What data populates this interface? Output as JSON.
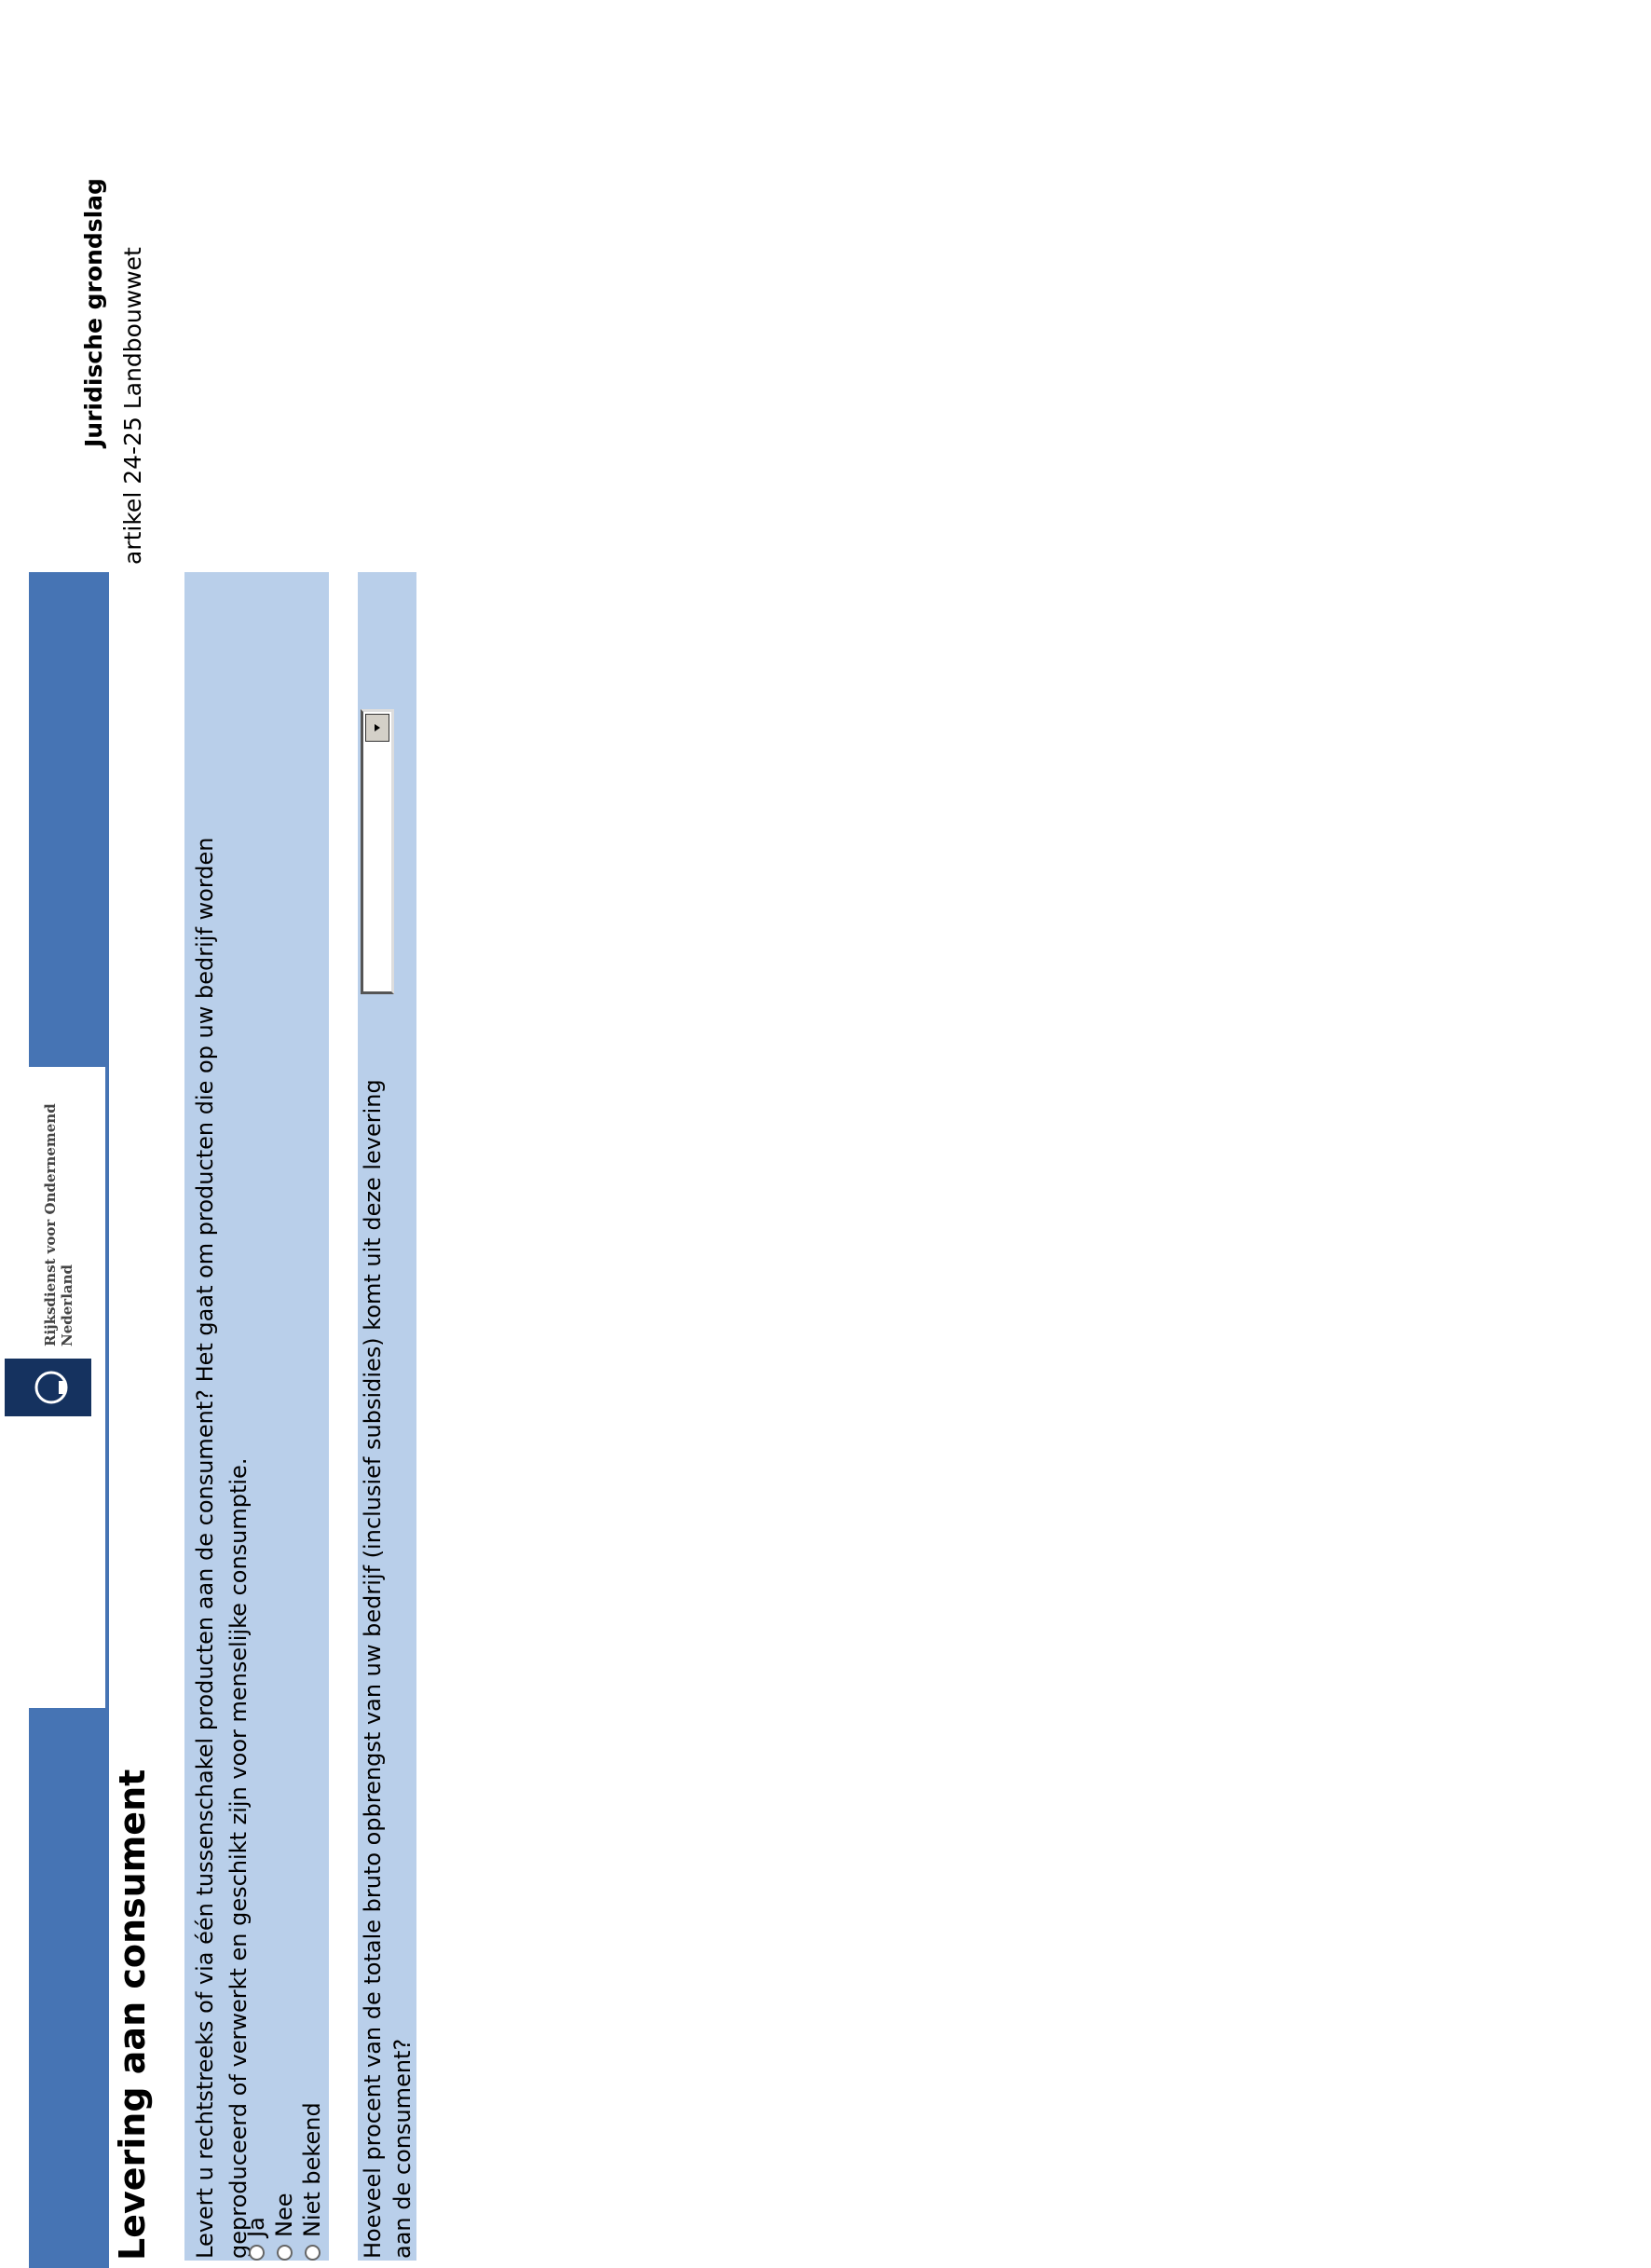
{
  "header": {
    "logo_text": [
      "Rijksdienst voor Ondernemend",
      "Nederland"
    ]
  },
  "page": {
    "title": "Levering aan consument"
  },
  "sidebar": {
    "heading": "Juridische grondslag",
    "text": "artikel 24-25 Landbouwwet"
  },
  "questions": [
    {
      "lines": [
        "Levert u rechtstreeks of via één tussenschakel producten aan de consument? Het gaat om producten die op uw bedrijf worden",
        "geproduceerd of verwerkt en geschikt zijn voor menselijke consumptie."
      ],
      "options": [
        "Ja",
        "Nee",
        "Niet bekend"
      ]
    },
    {
      "lines": [
        "Hoeveel procent van de totale bruto opbrengst van uw bedrijf (inclusief subsidies) komt uit deze levering",
        "aan de consument?"
      ]
    }
  ]
}
